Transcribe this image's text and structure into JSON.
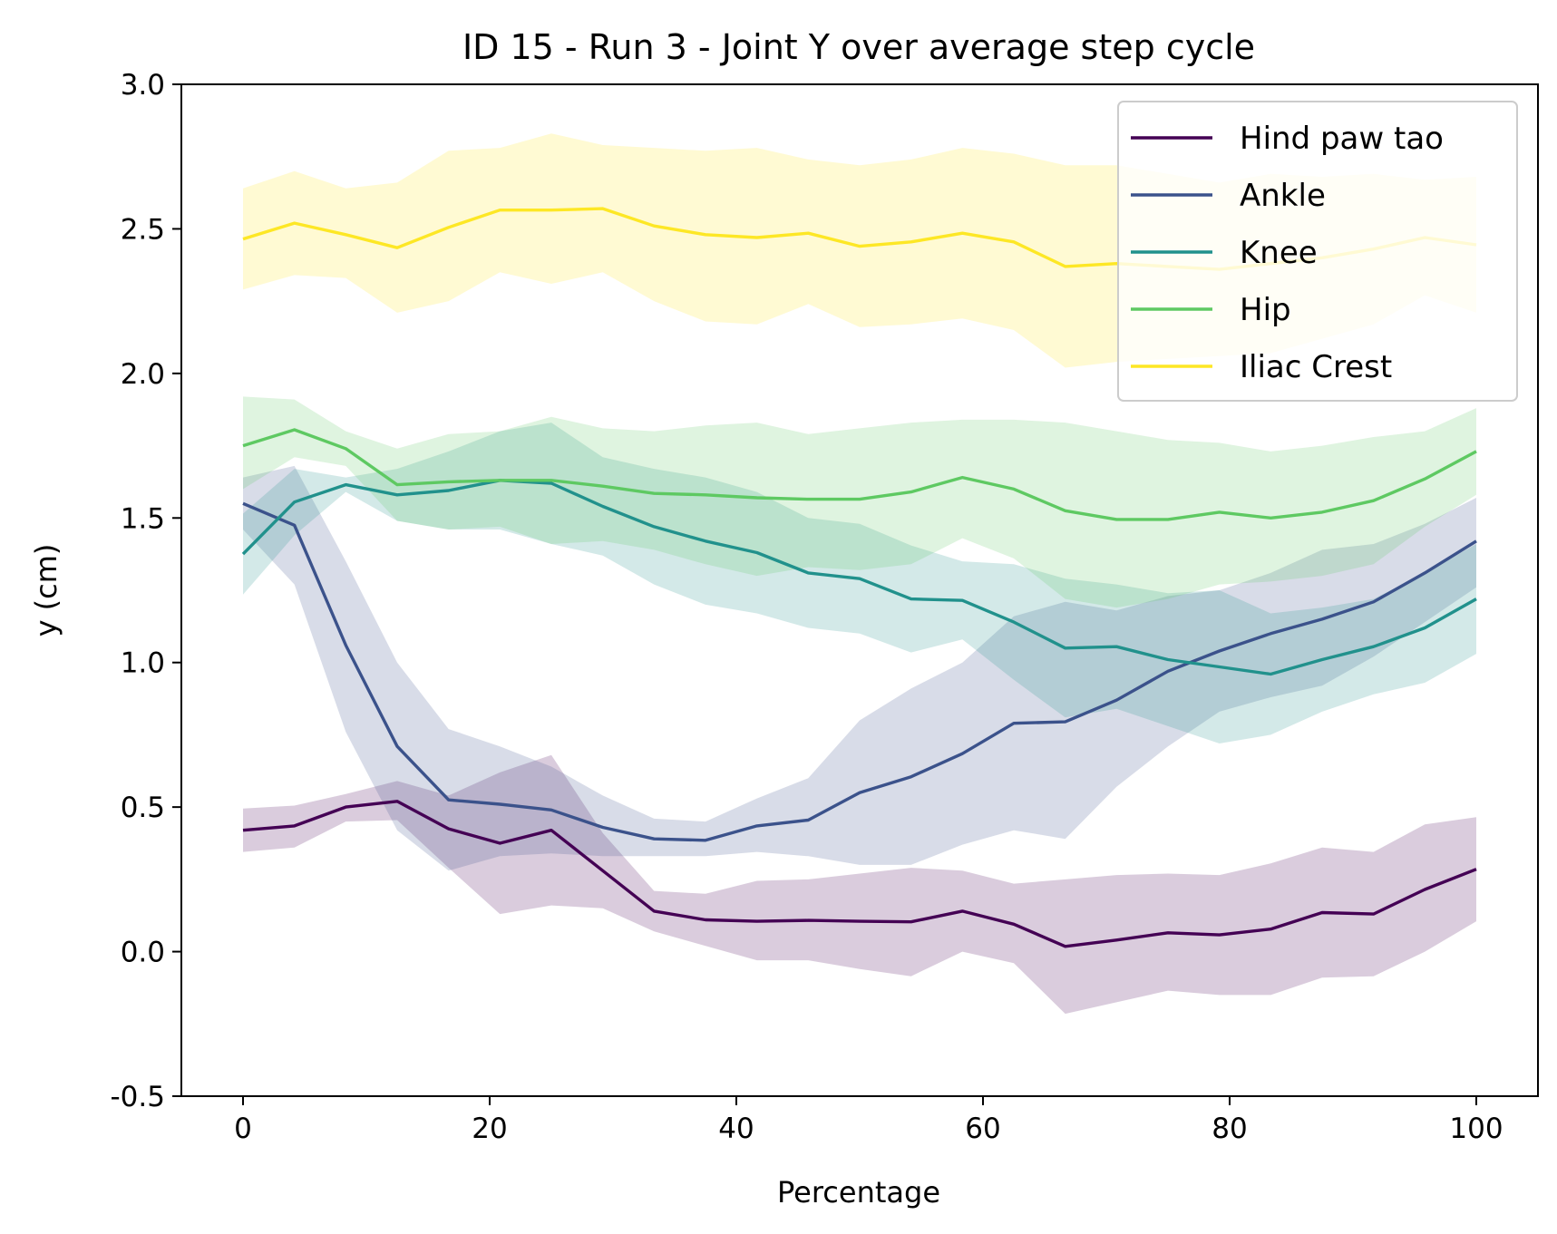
{
  "chart_data": {
    "type": "line",
    "title": "ID 15 - Run 3 - Joint Y over average step cycle",
    "xlabel": "Percentage",
    "ylabel": "y (cm)",
    "xlim": [
      -5,
      105
    ],
    "ylim": [
      -0.5,
      3.0
    ],
    "x_ticks": [
      0,
      20,
      40,
      60,
      80,
      100
    ],
    "x_tick_labels": [
      "0",
      "20",
      "40",
      "60",
      "80",
      "100"
    ],
    "y_ticks": [
      -0.5,
      0.0,
      0.5,
      1.0,
      1.5,
      2.0,
      2.5,
      3.0
    ],
    "y_tick_labels": [
      "-0.5",
      "0.0",
      "0.5",
      "1.0",
      "1.5",
      "2.0",
      "2.5",
      "3.0"
    ],
    "grid": false,
    "legend_position": "top-right",
    "x": [
      0,
      4.17,
      8.33,
      12.5,
      16.67,
      20.83,
      25,
      29.17,
      33.33,
      37.5,
      41.67,
      45.83,
      50,
      54.17,
      58.33,
      62.5,
      66.67,
      70.83,
      75,
      79.17,
      83.33,
      87.5,
      91.67,
      95.83,
      100
    ],
    "series": [
      {
        "name": "Hind paw tao",
        "color": "#440154",
        "values": [
          0.42,
          0.435,
          0.5,
          0.52,
          0.425,
          0.375,
          0.42,
          0.28,
          0.14,
          0.11,
          0.105,
          0.108,
          0.105,
          0.103,
          0.14,
          0.095,
          0.018,
          0.04,
          0.065,
          0.058,
          0.078,
          0.135,
          0.13,
          0.215,
          0.285
        ],
        "lower": [
          0.345,
          0.36,
          0.45,
          0.455,
          0.29,
          0.13,
          0.16,
          0.15,
          0.07,
          0.02,
          -0.03,
          -0.03,
          -0.06,
          -0.085,
          0.0,
          -0.04,
          -0.215,
          -0.175,
          -0.135,
          -0.15,
          -0.15,
          -0.09,
          -0.085,
          0.0,
          0.105
        ],
        "upper": [
          0.495,
          0.505,
          0.545,
          0.59,
          0.54,
          0.62,
          0.68,
          0.41,
          0.21,
          0.2,
          0.245,
          0.25,
          0.27,
          0.29,
          0.28,
          0.235,
          0.25,
          0.265,
          0.27,
          0.265,
          0.305,
          0.36,
          0.345,
          0.44,
          0.465
        ]
      },
      {
        "name": "Ankle",
        "color": "#3b528b",
        "values": [
          1.55,
          1.475,
          1.06,
          0.71,
          0.525,
          0.51,
          0.49,
          0.43,
          0.39,
          0.385,
          0.435,
          0.455,
          0.55,
          0.605,
          0.685,
          0.79,
          0.795,
          0.87,
          0.97,
          1.04,
          1.1,
          1.15,
          1.21,
          1.31,
          1.42
        ],
        "lower": [
          1.46,
          1.27,
          0.76,
          0.42,
          0.28,
          0.33,
          0.34,
          0.33,
          0.33,
          0.33,
          0.345,
          0.33,
          0.3,
          0.3,
          0.37,
          0.42,
          0.39,
          0.57,
          0.71,
          0.83,
          0.88,
          0.92,
          1.02,
          1.14,
          1.26
        ],
        "upper": [
          1.64,
          1.68,
          1.35,
          1.0,
          0.77,
          0.71,
          0.64,
          0.54,
          0.46,
          0.45,
          0.53,
          0.6,
          0.8,
          0.91,
          1.0,
          1.16,
          1.21,
          1.18,
          1.23,
          1.25,
          1.31,
          1.39,
          1.41,
          1.48,
          1.57
        ]
      },
      {
        "name": "Knee",
        "color": "#21918c",
        "values": [
          1.375,
          1.555,
          1.615,
          1.58,
          1.595,
          1.63,
          1.62,
          1.54,
          1.47,
          1.42,
          1.38,
          1.31,
          1.29,
          1.22,
          1.215,
          1.14,
          1.05,
          1.055,
          1.01,
          0.985,
          0.96,
          1.01,
          1.055,
          1.12,
          1.22
        ],
        "lower": [
          1.235,
          1.44,
          1.59,
          1.49,
          1.46,
          1.46,
          1.41,
          1.37,
          1.27,
          1.2,
          1.17,
          1.12,
          1.1,
          1.035,
          1.08,
          0.94,
          0.81,
          0.84,
          0.78,
          0.72,
          0.75,
          0.83,
          0.89,
          0.93,
          1.03
        ],
        "upper": [
          1.515,
          1.67,
          1.64,
          1.67,
          1.73,
          1.8,
          1.83,
          1.71,
          1.67,
          1.64,
          1.59,
          1.5,
          1.48,
          1.405,
          1.35,
          1.34,
          1.29,
          1.27,
          1.24,
          1.25,
          1.17,
          1.19,
          1.22,
          1.31,
          1.41
        ]
      },
      {
        "name": "Hip",
        "color": "#5ec962",
        "values": [
          1.75,
          1.805,
          1.74,
          1.615,
          1.625,
          1.63,
          1.63,
          1.61,
          1.585,
          1.58,
          1.57,
          1.565,
          1.565,
          1.59,
          1.64,
          1.6,
          1.525,
          1.495,
          1.495,
          1.52,
          1.5,
          1.52,
          1.56,
          1.635,
          1.73
        ],
        "lower": [
          1.6,
          1.71,
          1.68,
          1.49,
          1.46,
          1.47,
          1.41,
          1.42,
          1.39,
          1.34,
          1.3,
          1.33,
          1.32,
          1.34,
          1.43,
          1.36,
          1.22,
          1.19,
          1.22,
          1.27,
          1.28,
          1.3,
          1.34,
          1.47,
          1.58
        ],
        "upper": [
          1.92,
          1.91,
          1.8,
          1.74,
          1.79,
          1.8,
          1.85,
          1.81,
          1.8,
          1.82,
          1.83,
          1.79,
          1.81,
          1.83,
          1.84,
          1.84,
          1.83,
          1.8,
          1.77,
          1.76,
          1.73,
          1.75,
          1.78,
          1.8,
          1.88
        ]
      },
      {
        "name": "Iliac Crest",
        "color": "#fde725",
        "values": [
          2.465,
          2.52,
          2.48,
          2.435,
          2.505,
          2.565,
          2.565,
          2.57,
          2.51,
          2.48,
          2.47,
          2.485,
          2.44,
          2.455,
          2.485,
          2.455,
          2.37,
          2.38,
          2.37,
          2.36,
          2.38,
          2.4,
          2.43,
          2.47,
          2.445
        ],
        "lower": [
          2.29,
          2.34,
          2.33,
          2.21,
          2.25,
          2.35,
          2.31,
          2.35,
          2.25,
          2.18,
          2.17,
          2.24,
          2.16,
          2.17,
          2.19,
          2.15,
          2.02,
          2.04,
          2.05,
          2.06,
          2.07,
          2.12,
          2.17,
          2.27,
          2.21
        ],
        "upper": [
          2.64,
          2.7,
          2.64,
          2.66,
          2.77,
          2.78,
          2.83,
          2.79,
          2.78,
          2.77,
          2.78,
          2.74,
          2.72,
          2.74,
          2.78,
          2.76,
          2.72,
          2.72,
          2.69,
          2.66,
          2.69,
          2.68,
          2.69,
          2.67,
          2.68
        ]
      }
    ]
  }
}
